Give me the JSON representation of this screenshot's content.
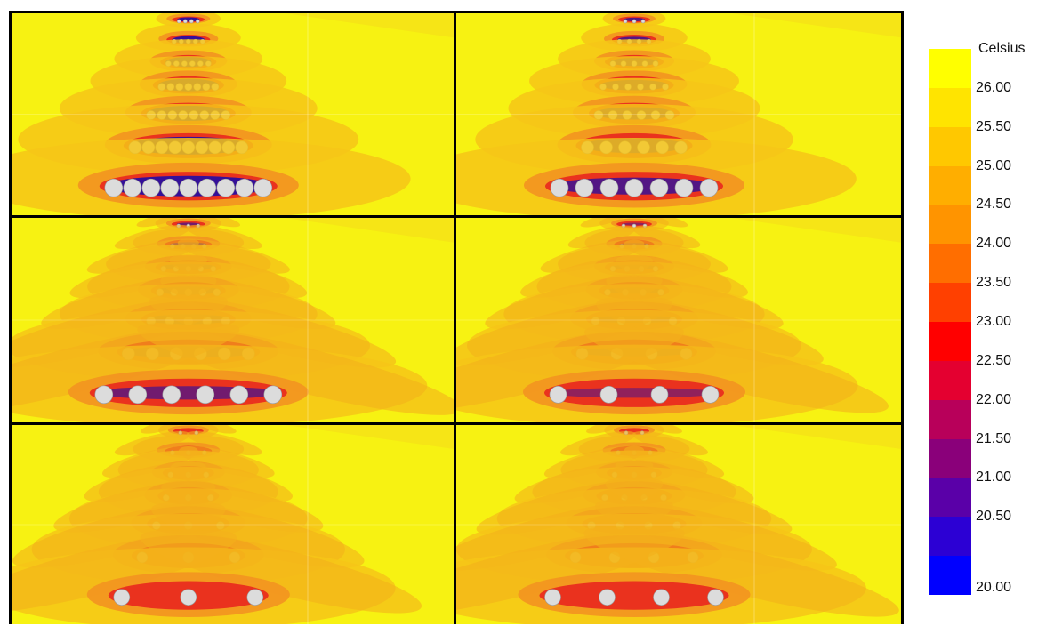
{
  "figure": {
    "panels": [
      {
        "id": "p1",
        "rows": [
          {
            "n": 4,
            "d": 4,
            "spacing": 7
          },
          {
            "n": 5,
            "d": 5,
            "spacing": 8
          },
          {
            "n": 6,
            "d": 6,
            "spacing": 9
          },
          {
            "n": 7,
            "d": 8,
            "spacing": 10
          },
          {
            "n": 8,
            "d": 10,
            "spacing": 12
          },
          {
            "n": 9,
            "d": 14,
            "spacing": 15
          },
          {
            "n": 9,
            "d": 20,
            "spacing": 21
          }
        ]
      },
      {
        "id": "p2",
        "rows": [
          {
            "n": 3,
            "d": 4,
            "spacing": 10
          },
          {
            "n": 4,
            "d": 5,
            "spacing": 11
          },
          {
            "n": 5,
            "d": 6,
            "spacing": 12
          },
          {
            "n": 6,
            "d": 7,
            "spacing": 14
          },
          {
            "n": 6,
            "d": 10,
            "spacing": 16
          },
          {
            "n": 6,
            "d": 14,
            "spacing": 21
          },
          {
            "n": 7,
            "d": 20,
            "spacing": 28
          }
        ]
      },
      {
        "id": "p3",
        "rows": [
          {
            "n": 3,
            "d": 4,
            "spacing": 11
          },
          {
            "n": 4,
            "d": 5,
            "spacing": 12
          },
          {
            "n": 5,
            "d": 6,
            "spacing": 14
          },
          {
            "n": 5,
            "d": 8,
            "spacing": 16
          },
          {
            "n": 5,
            "d": 10,
            "spacing": 21
          },
          {
            "n": 6,
            "d": 14,
            "spacing": 27
          },
          {
            "n": 6,
            "d": 20,
            "spacing": 38
          }
        ]
      },
      {
        "id": "p4",
        "rows": [
          {
            "n": 3,
            "d": 4,
            "spacing": 12
          },
          {
            "n": 3,
            "d": 5,
            "spacing": 14
          },
          {
            "n": 4,
            "d": 6,
            "spacing": 16
          },
          {
            "n": 4,
            "d": 7,
            "spacing": 20
          },
          {
            "n": 4,
            "d": 9,
            "spacing": 29
          },
          {
            "n": 4,
            "d": 13,
            "spacing": 39
          },
          {
            "n": 4,
            "d": 19,
            "spacing": 57
          }
        ]
      },
      {
        "id": "p5",
        "rows": [
          {
            "n": 2,
            "d": 4,
            "spacing": 18
          },
          {
            "n": 3,
            "d": 5,
            "spacing": 18
          },
          {
            "n": 3,
            "d": 6,
            "spacing": 20
          },
          {
            "n": 3,
            "d": 7,
            "spacing": 25
          },
          {
            "n": 3,
            "d": 9,
            "spacing": 36
          },
          {
            "n": 3,
            "d": 12,
            "spacing": 52
          },
          {
            "n": 3,
            "d": 18,
            "spacing": 75
          }
        ]
      },
      {
        "id": "p6",
        "rows": [
          {
            "n": 2,
            "d": 4,
            "spacing": 18
          },
          {
            "n": 3,
            "d": 5,
            "spacing": 18
          },
          {
            "n": 3,
            "d": 6,
            "spacing": 22
          },
          {
            "n": 4,
            "d": 7,
            "spacing": 22
          },
          {
            "n": 4,
            "d": 9,
            "spacing": 32
          },
          {
            "n": 4,
            "d": 12,
            "spacing": 44
          },
          {
            "n": 4,
            "d": 18,
            "spacing": 61
          }
        ]
      }
    ]
  },
  "legend": {
    "title": "Celsius",
    "ticks": [
      "26.00",
      "25.50",
      "25.00",
      "24.50",
      "24.00",
      "23.50",
      "23.00",
      "22.50",
      "22.00",
      "21.50",
      "21.00",
      "20.50",
      "20.00"
    ],
    "colors": [
      "#ffff00",
      "#ffe400",
      "#ffc800",
      "#ffae00",
      "#ff9400",
      "#ff6e00",
      "#ff4000",
      "#ff0000",
      "#e40030",
      "#b8005a",
      "#8a007a",
      "#5a00a8",
      "#2c00d4",
      "#0000ff"
    ]
  },
  "colors": {
    "background": "#f7f212",
    "cold_core": "#2a0fa0",
    "pipe": "#dcdcdc"
  }
}
